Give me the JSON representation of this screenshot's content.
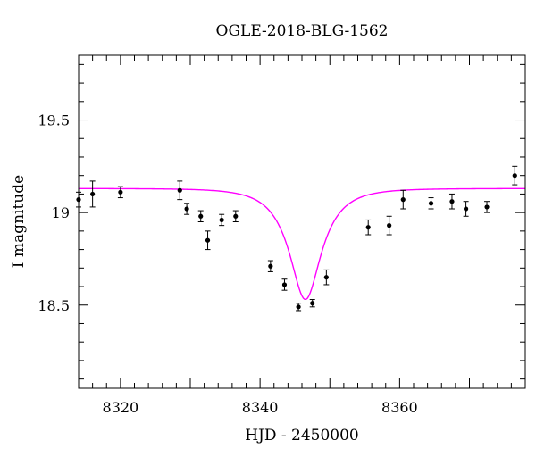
{
  "chart_data": {
    "type": "scatter",
    "title": "OGLE-2018-BLG-1562",
    "xlabel": "HJD - 2450000",
    "ylabel": "I magnitude",
    "xlim": [
      8314,
      8378
    ],
    "ylim": [
      19.85,
      18.05
    ],
    "y_inverted": true,
    "grid": false,
    "x_ticks": [
      8320,
      8340,
      8360
    ],
    "x_tick_labels": [
      "8320",
      "8340",
      "8360"
    ],
    "y_ticks": [
      18.5,
      19,
      19.5
    ],
    "y_tick_labels": [
      "18.5",
      "19",
      "19.5"
    ],
    "x_minor_step": 2,
    "y_minor_step": 0.1,
    "points": {
      "x": [
        8314,
        8316,
        8320,
        8328.5,
        8329.5,
        8331.5,
        8332.5,
        8334.5,
        8336.5,
        8341.5,
        8343.5,
        8345.5,
        8347.5,
        8349.5,
        8355.5,
        8358.5,
        8360.5,
        8364.5,
        8367.5,
        8369.5,
        8372.5,
        8376.5
      ],
      "y": [
        19.07,
        19.1,
        19.11,
        19.12,
        19.02,
        18.98,
        18.85,
        18.96,
        18.98,
        18.71,
        18.61,
        18.49,
        18.51,
        18.65,
        18.92,
        18.93,
        19.07,
        19.05,
        19.06,
        19.02,
        19.03,
        19.2
      ],
      "yerr": [
        0.04,
        0.07,
        0.03,
        0.05,
        0.03,
        0.03,
        0.05,
        0.03,
        0.03,
        0.03,
        0.03,
        0.02,
        0.02,
        0.04,
        0.04,
        0.05,
        0.05,
        0.03,
        0.04,
        0.04,
        0.03,
        0.05
      ],
      "color": "#000000"
    },
    "model": {
      "type": "line",
      "color": "#ff00ff",
      "baseline": 19.13,
      "peak": 18.53,
      "t0": 8346.5,
      "tE": 5.0,
      "u_min": 0.47
    }
  }
}
